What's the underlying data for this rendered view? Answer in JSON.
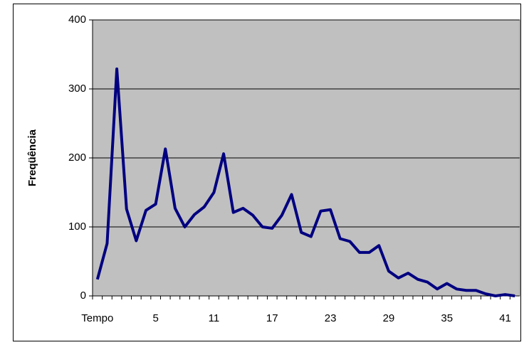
{
  "chart_data": {
    "type": "line",
    "y_label": "Freqüência",
    "categories": [
      "Tempo",
      null,
      null,
      null,
      null,
      null,
      "5",
      null,
      null,
      null,
      null,
      null,
      "11",
      null,
      null,
      null,
      null,
      null,
      "17",
      null,
      null,
      null,
      null,
      null,
      "23",
      null,
      null,
      null,
      null,
      null,
      "29",
      null,
      null,
      null,
      null,
      null,
      "35",
      null,
      null,
      null,
      null,
      null,
      "41",
      null
    ],
    "series": [
      {
        "color": "#000080",
        "values": [
          24,
          76,
          329,
          126,
          80,
          124,
          133,
          213,
          127,
          100,
          118,
          129,
          150,
          206,
          121,
          127,
          117,
          100,
          98,
          117,
          147,
          92,
          86,
          123,
          125,
          83,
          79,
          63,
          63,
          73,
          36,
          26,
          33,
          24,
          20,
          10,
          18,
          10,
          8,
          8,
          3,
          0,
          2,
          0
        ]
      }
    ],
    "ylim": [
      0,
      400
    ],
    "yticks": [
      0,
      100,
      200,
      300,
      400
    ],
    "grid": true,
    "background": "#c0c0c0"
  }
}
